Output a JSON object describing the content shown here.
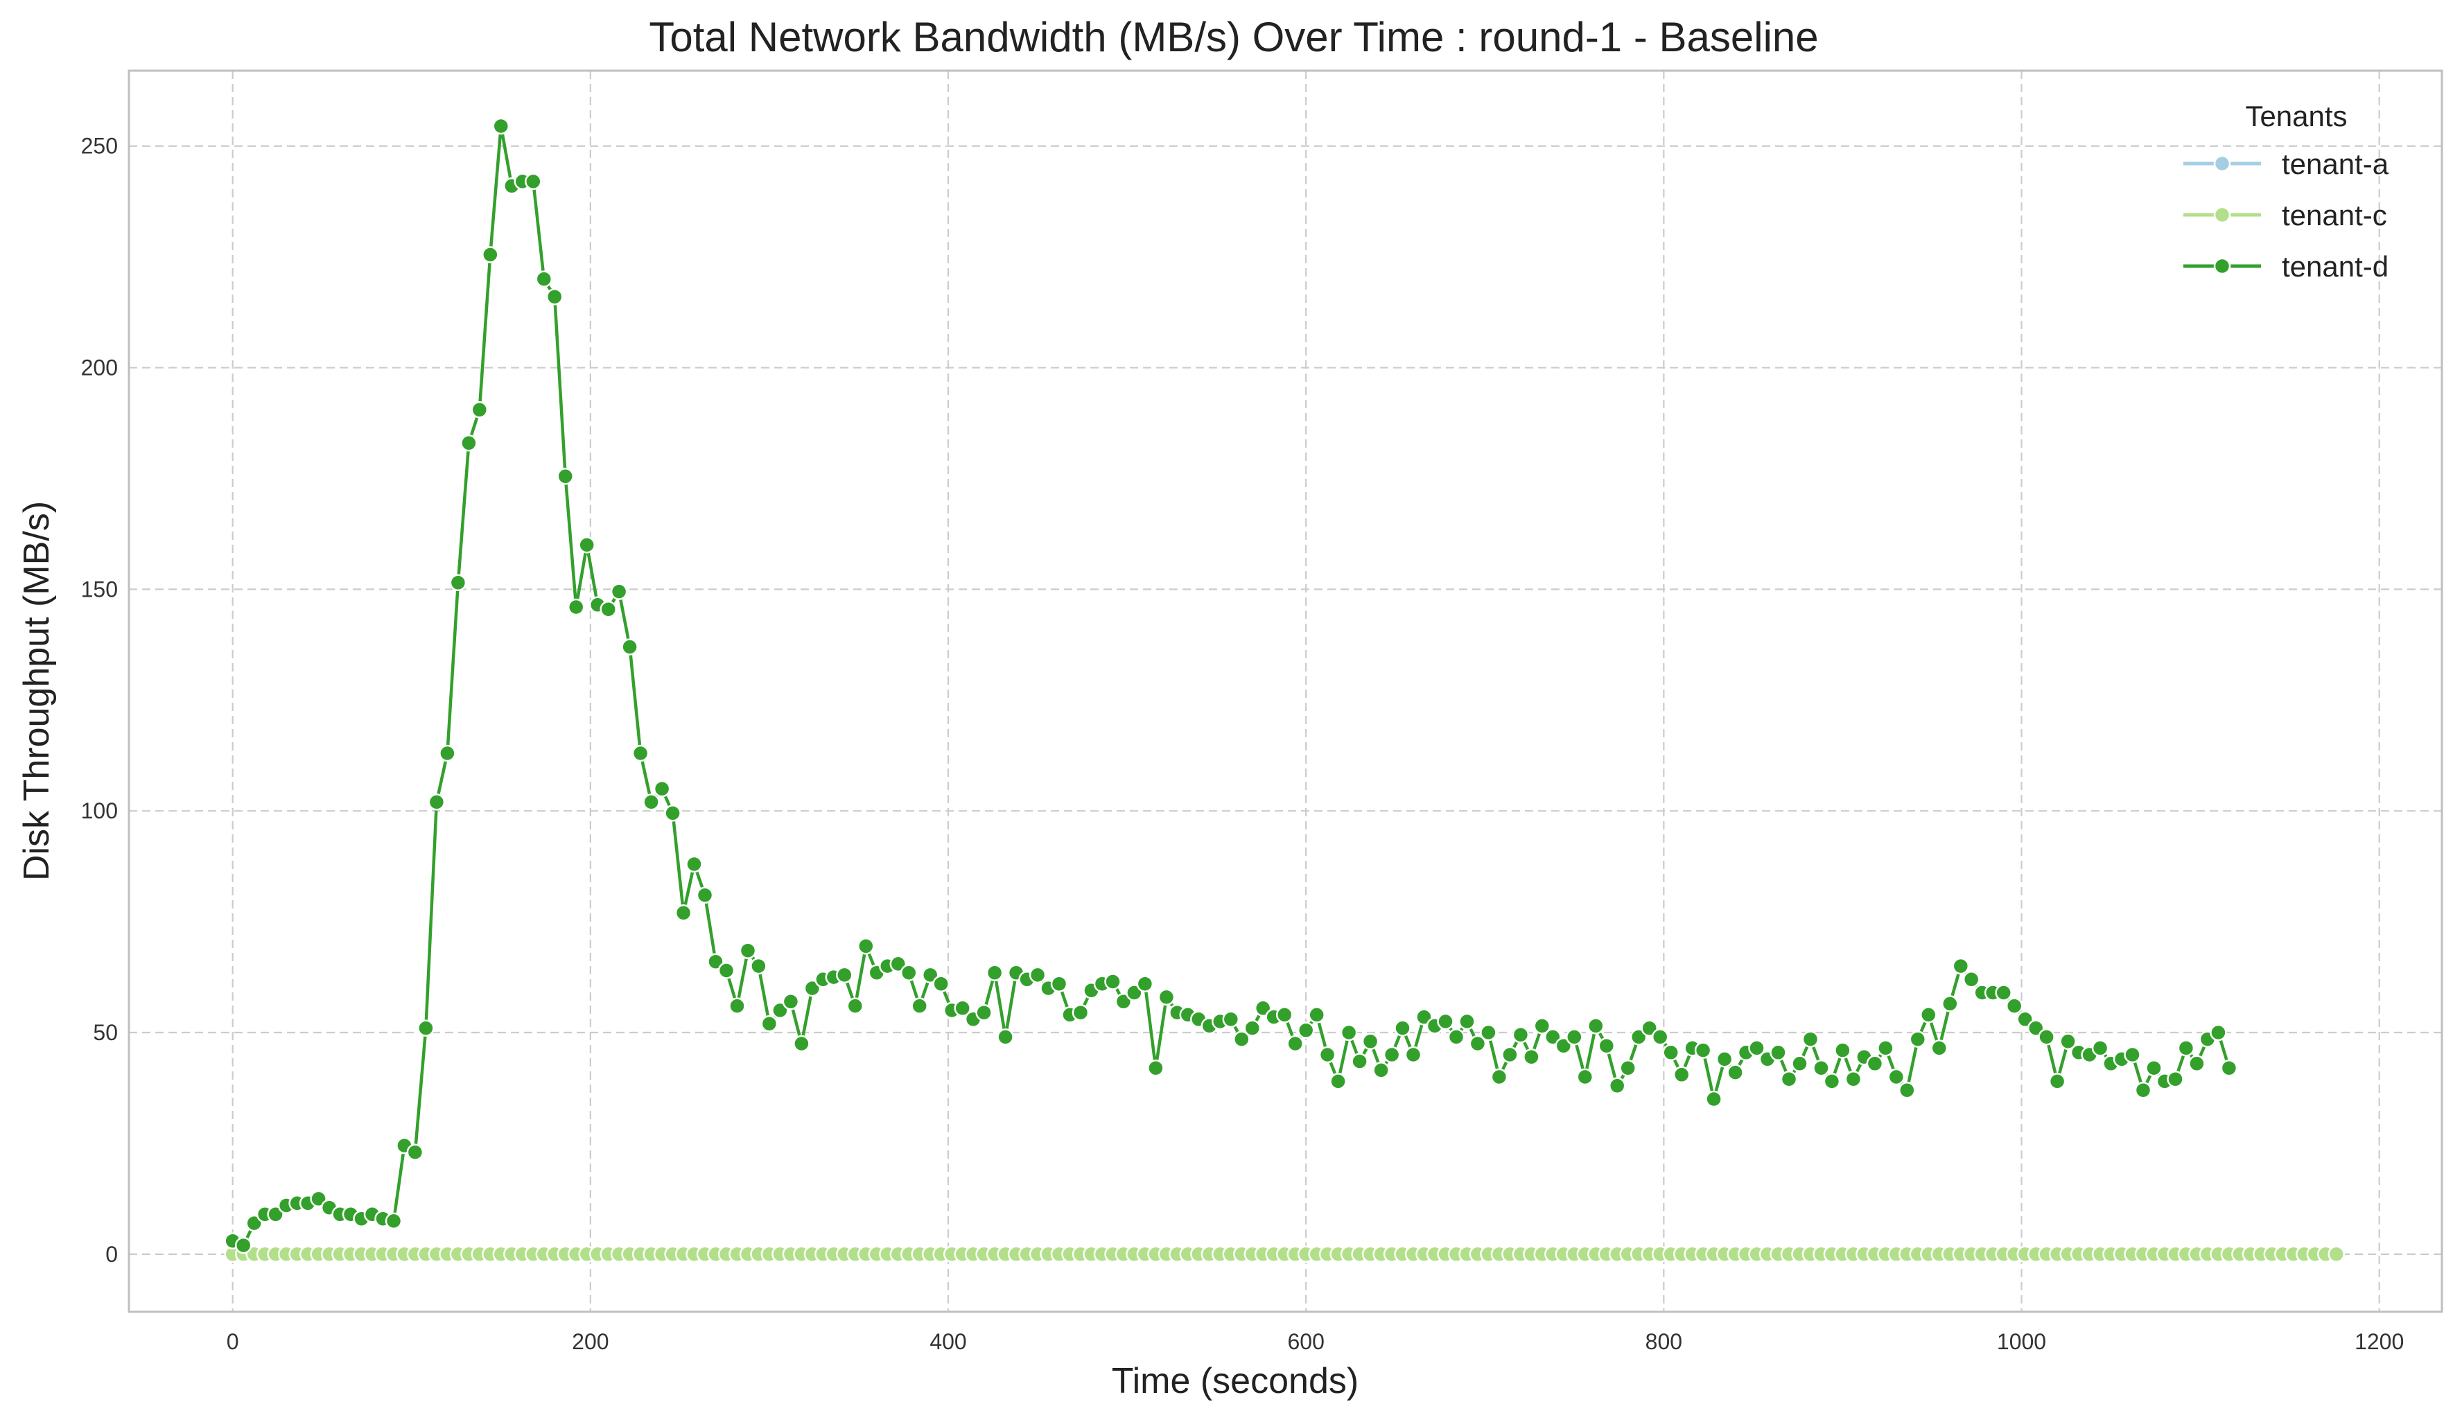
{
  "chart_data": {
    "type": "line",
    "title": "Total Network Bandwidth (MB/s) Over Time : round-1 - Baseline",
    "xlabel": "Time (seconds)",
    "ylabel": "Disk Throughput (MB/s)",
    "xlim": [
      -58,
      1235
    ],
    "ylim": [
      -13,
      267
    ],
    "xticks": [
      0,
      200,
      400,
      600,
      800,
      1000,
      1200
    ],
    "yticks": [
      0,
      50,
      100,
      150,
      200,
      250
    ],
    "grid": true,
    "legend": {
      "title": "Tenants",
      "position": "top-right"
    },
    "x_step": 6,
    "series": [
      {
        "name": "tenant-a",
        "color": "#a6cee3",
        "values": [
          0,
          0,
          0,
          0,
          0,
          0,
          0,
          0,
          0,
          0,
          0,
          0,
          0,
          0,
          0,
          0,
          0,
          0,
          0,
          0,
          0,
          0,
          0,
          0,
          0,
          0,
          0,
          0,
          0,
          0,
          0,
          0,
          0,
          0,
          0,
          0,
          0,
          0,
          0,
          0,
          0,
          0,
          0,
          0,
          0,
          0,
          0,
          0,
          0,
          0,
          0,
          0,
          0,
          0,
          0,
          0,
          0,
          0,
          0,
          0,
          0,
          0,
          0,
          0,
          0,
          0,
          0,
          0,
          0,
          0,
          0,
          0,
          0,
          0,
          0,
          0,
          0,
          0,
          0,
          0,
          0,
          0,
          0,
          0,
          0,
          0,
          0,
          0,
          0,
          0,
          0,
          0,
          0,
          0,
          0,
          0,
          0,
          0,
          0,
          0,
          0,
          0,
          0,
          0,
          0,
          0,
          0,
          0,
          0,
          0,
          0,
          0,
          0,
          0,
          0,
          0,
          0,
          0,
          0,
          0,
          0,
          0,
          0,
          0,
          0,
          0,
          0,
          0,
          0,
          0,
          0,
          0,
          0,
          0,
          0,
          0,
          0,
          0,
          0,
          0,
          0,
          0,
          0,
          0,
          0,
          0,
          0,
          0,
          0,
          0,
          0,
          0,
          0,
          0,
          0,
          0,
          0,
          0,
          0,
          0,
          0,
          0,
          0,
          0,
          0,
          0,
          0,
          0,
          0,
          0,
          0,
          0,
          0,
          0,
          0,
          0,
          0,
          0,
          0,
          0,
          0,
          0,
          0,
          0,
          0,
          0,
          0,
          0,
          0,
          0,
          0,
          0,
          0,
          0,
          0,
          0,
          0
        ]
      },
      {
        "name": "tenant-c",
        "color": "#b2df8a",
        "values": [
          0,
          0,
          0,
          0,
          0,
          0,
          0,
          0,
          0,
          0,
          0,
          0,
          0,
          0,
          0,
          0,
          0,
          0,
          0,
          0,
          0,
          0,
          0,
          0,
          0,
          0,
          0,
          0,
          0,
          0,
          0,
          0,
          0,
          0,
          0,
          0,
          0,
          0,
          0,
          0,
          0,
          0,
          0,
          0,
          0,
          0,
          0,
          0,
          0,
          0,
          0,
          0,
          0,
          0,
          0,
          0,
          0,
          0,
          0,
          0,
          0,
          0,
          0,
          0,
          0,
          0,
          0,
          0,
          0,
          0,
          0,
          0,
          0,
          0,
          0,
          0,
          0,
          0,
          0,
          0,
          0,
          0,
          0,
          0,
          0,
          0,
          0,
          0,
          0,
          0,
          0,
          0,
          0,
          0,
          0,
          0,
          0,
          0,
          0,
          0,
          0,
          0,
          0,
          0,
          0,
          0,
          0,
          0,
          0,
          0,
          0,
          0,
          0,
          0,
          0,
          0,
          0,
          0,
          0,
          0,
          0,
          0,
          0,
          0,
          0,
          0,
          0,
          0,
          0,
          0,
          0,
          0,
          0,
          0,
          0,
          0,
          0,
          0,
          0,
          0,
          0,
          0,
          0,
          0,
          0,
          0,
          0,
          0,
          0,
          0,
          0,
          0,
          0,
          0,
          0,
          0,
          0,
          0,
          0,
          0,
          0,
          0,
          0,
          0,
          0,
          0,
          0,
          0,
          0,
          0,
          0,
          0,
          0,
          0,
          0,
          0,
          0,
          0,
          0,
          0,
          0,
          0,
          0,
          0,
          0,
          0,
          0,
          0,
          0,
          0,
          0,
          0,
          0,
          0,
          0,
          0,
          0
        ]
      },
      {
        "name": "tenant-d",
        "color": "#33a02c",
        "values": [
          3,
          2,
          7,
          9,
          9,
          11,
          11.5,
          11.5,
          12.5,
          10.5,
          9,
          9,
          8,
          9,
          8,
          7.5,
          24.5,
          23,
          51,
          102,
          113,
          151.5,
          183,
          190.5,
          225.5,
          254.5,
          241,
          242,
          242,
          220,
          216,
          175.5,
          146,
          160,
          146.5,
          145.5,
          149.5,
          137,
          113,
          102,
          105,
          99.5,
          77,
          88,
          81,
          66,
          64,
          56,
          68.5,
          65,
          52,
          55,
          57,
          47.5,
          60,
          62,
          62.5,
          63,
          56,
          69.5,
          63.5,
          65,
          65.5,
          63.5,
          56,
          63,
          61,
          55,
          55.5,
          53,
          54.5,
          63.5,
          49,
          63.5,
          62,
          63,
          60,
          61,
          54,
          54.5,
          59.5,
          61,
          61.5,
          57,
          59,
          61,
          42,
          58,
          54.5,
          54,
          53,
          51.5,
          52.5,
          53,
          48.5,
          51,
          55.5,
          53.5,
          54,
          47.5,
          50.5,
          54,
          45,
          39,
          50,
          43.5,
          48,
          41.5,
          45,
          51,
          45,
          53.5,
          51.5,
          52.5,
          49,
          52.5,
          47.5,
          50,
          40,
          45,
          49.5,
          44.5,
          51.5,
          49,
          47,
          49,
          40,
          51.5,
          47,
          38,
          42,
          49,
          51,
          49,
          45.5,
          40.5,
          46.5,
          46,
          35,
          44,
          41,
          45.5,
          46.5,
          44,
          45.5,
          39.5,
          43,
          48.5,
          42,
          39,
          46,
          39.5,
          44.5,
          43,
          46.5,
          40,
          37,
          48.5,
          54,
          46.5,
          56.5,
          65,
          62,
          59,
          59,
          59,
          56,
          53,
          51,
          49,
          39,
          48,
          45.5,
          45,
          46.5,
          43,
          44,
          45,
          37,
          42,
          39,
          39.5,
          46.5,
          43,
          48.5,
          50,
          42
        ]
      }
    ]
  }
}
